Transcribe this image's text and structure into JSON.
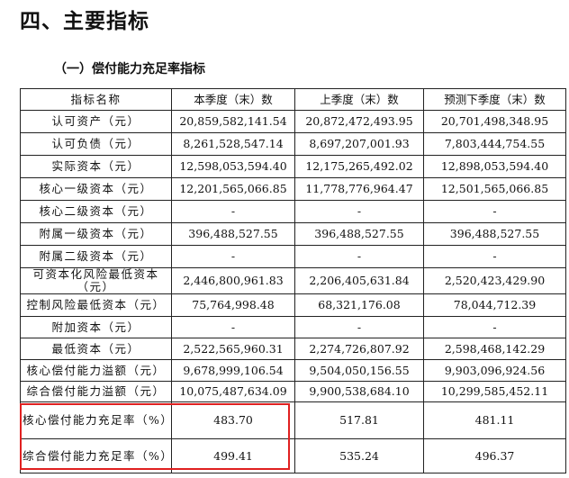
{
  "section_title": "四、主要指标",
  "subsection_title": "（一）偿付能力充足率指标",
  "table": {
    "headers": [
      "指标名称",
      "本季度（末）数",
      "上季度（末）数",
      "预测下季度（末）数"
    ],
    "rows": [
      [
        "认可资产（元）",
        "20,859,582,141.54",
        "20,872,472,493.95",
        "20,701,498,348.95"
      ],
      [
        "认可负债（元）",
        "8,261,528,547.14",
        "8,697,207,001.93",
        "7,803,444,754.55"
      ],
      [
        "实际资本（元）",
        "12,598,053,594.40",
        "12,175,265,492.02",
        "12,898,053,594.40"
      ],
      [
        "核心一级资本（元）",
        "12,201,565,066.85",
        "11,778,776,964.47",
        "12,501,565,066.85"
      ],
      [
        "核心二级资本（元）",
        "-",
        "-",
        "-"
      ],
      [
        "附属一级资本（元）",
        "396,488,527.55",
        "396,488,527.55",
        "396,488,527.55"
      ],
      [
        "附属二级资本（元）",
        "-",
        "-",
        "-"
      ],
      [
        "可资本化风险最低资本（元）",
        "2,446,800,961.83",
        "2,206,405,631.84",
        "2,520,423,429.90"
      ],
      [
        "控制风险最低资本（元）",
        "75,764,998.48",
        "68,321,176.08",
        "78,044,712.39"
      ],
      [
        "附加资本（元）",
        "-",
        "-",
        "-"
      ],
      [
        "最低资本（元）",
        "2,522,565,960.31",
        "2,274,726,807.92",
        "2,598,468,142.29"
      ],
      [
        "核心偿付能力溢额（元）",
        "9,678,999,106.54",
        "9,504,050,156.55",
        "9,903,096,924.56"
      ],
      [
        "综合偿付能力溢额（元）",
        "10,075,487,634.09",
        "9,900,538,684.10",
        "10,299,585,452.11"
      ],
      [
        "核心偿付能力充足率（%）",
        "483.70",
        "517.81",
        "481.11"
      ],
      [
        "综合偿付能力充足率（%）",
        "499.41",
        "535.24",
        "496.37"
      ]
    ]
  },
  "highlight_color": "#e02020"
}
